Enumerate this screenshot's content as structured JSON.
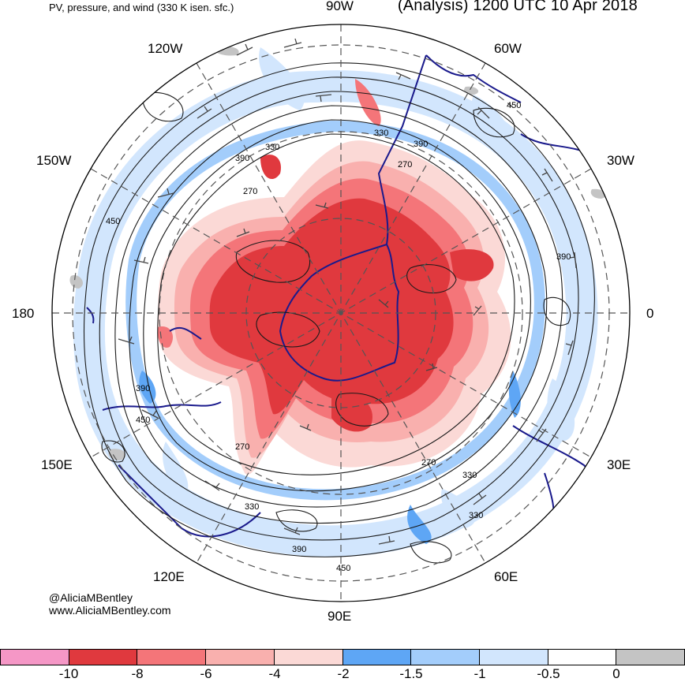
{
  "header": {
    "left_title": "PV, pressure, and wind (330 K isen. sfc.)",
    "right_title": "(Analysis) 1200 UTC 10 Apr 2018"
  },
  "credits": {
    "twitter": "@AliciaMBentley",
    "website": "www.AliciaMBentley.com"
  },
  "longitude_labels": {
    "lon_90w": "90W",
    "lon_60w": "60W",
    "lon_120w": "120W",
    "lon_30w": "30W",
    "lon_150w": "150W",
    "lon_180": "180",
    "lon_0": "0",
    "lon_150e": "150E",
    "lon_30e": "30E",
    "lon_120e": "120E",
    "lon_60e": "60E",
    "lon_90e": "90E"
  },
  "contour_labels": [
    "330",
    "390",
    "270",
    "450",
    "330",
    "270",
    "390",
    "450",
    "390",
    "450",
    "270",
    "330",
    "390",
    "450",
    "270",
    "330",
    "390",
    "330"
  ],
  "colorbar": {
    "segments": [
      {
        "color": "#f597c6"
      },
      {
        "color": "#e0393e"
      },
      {
        "color": "#f47579"
      },
      {
        "color": "#f9b0ae"
      },
      {
        "color": "#fbd9d6"
      },
      {
        "color": "#5ea6f5"
      },
      {
        "color": "#a3cdfb"
      },
      {
        "color": "#d2e6fd"
      },
      {
        "color": "#ffffff"
      },
      {
        "color": "#c4c4c4"
      }
    ],
    "tick_labels": [
      "-10",
      "-8",
      "-6",
      "-4",
      "-2",
      "-1.5",
      "-1",
      "-0.5",
      "0"
    ]
  },
  "colors": {
    "strong_negative_pv": "#e0393e",
    "negative_pv": "#f47579",
    "weak_negative_pv": "#f9b0ae",
    "faint_negative_pv": "#fbd9d6",
    "blue_strong": "#5ea6f5",
    "blue_mid": "#a3cdfb",
    "blue_light": "#d2e6fd",
    "coastline": "#1a1a8c"
  }
}
